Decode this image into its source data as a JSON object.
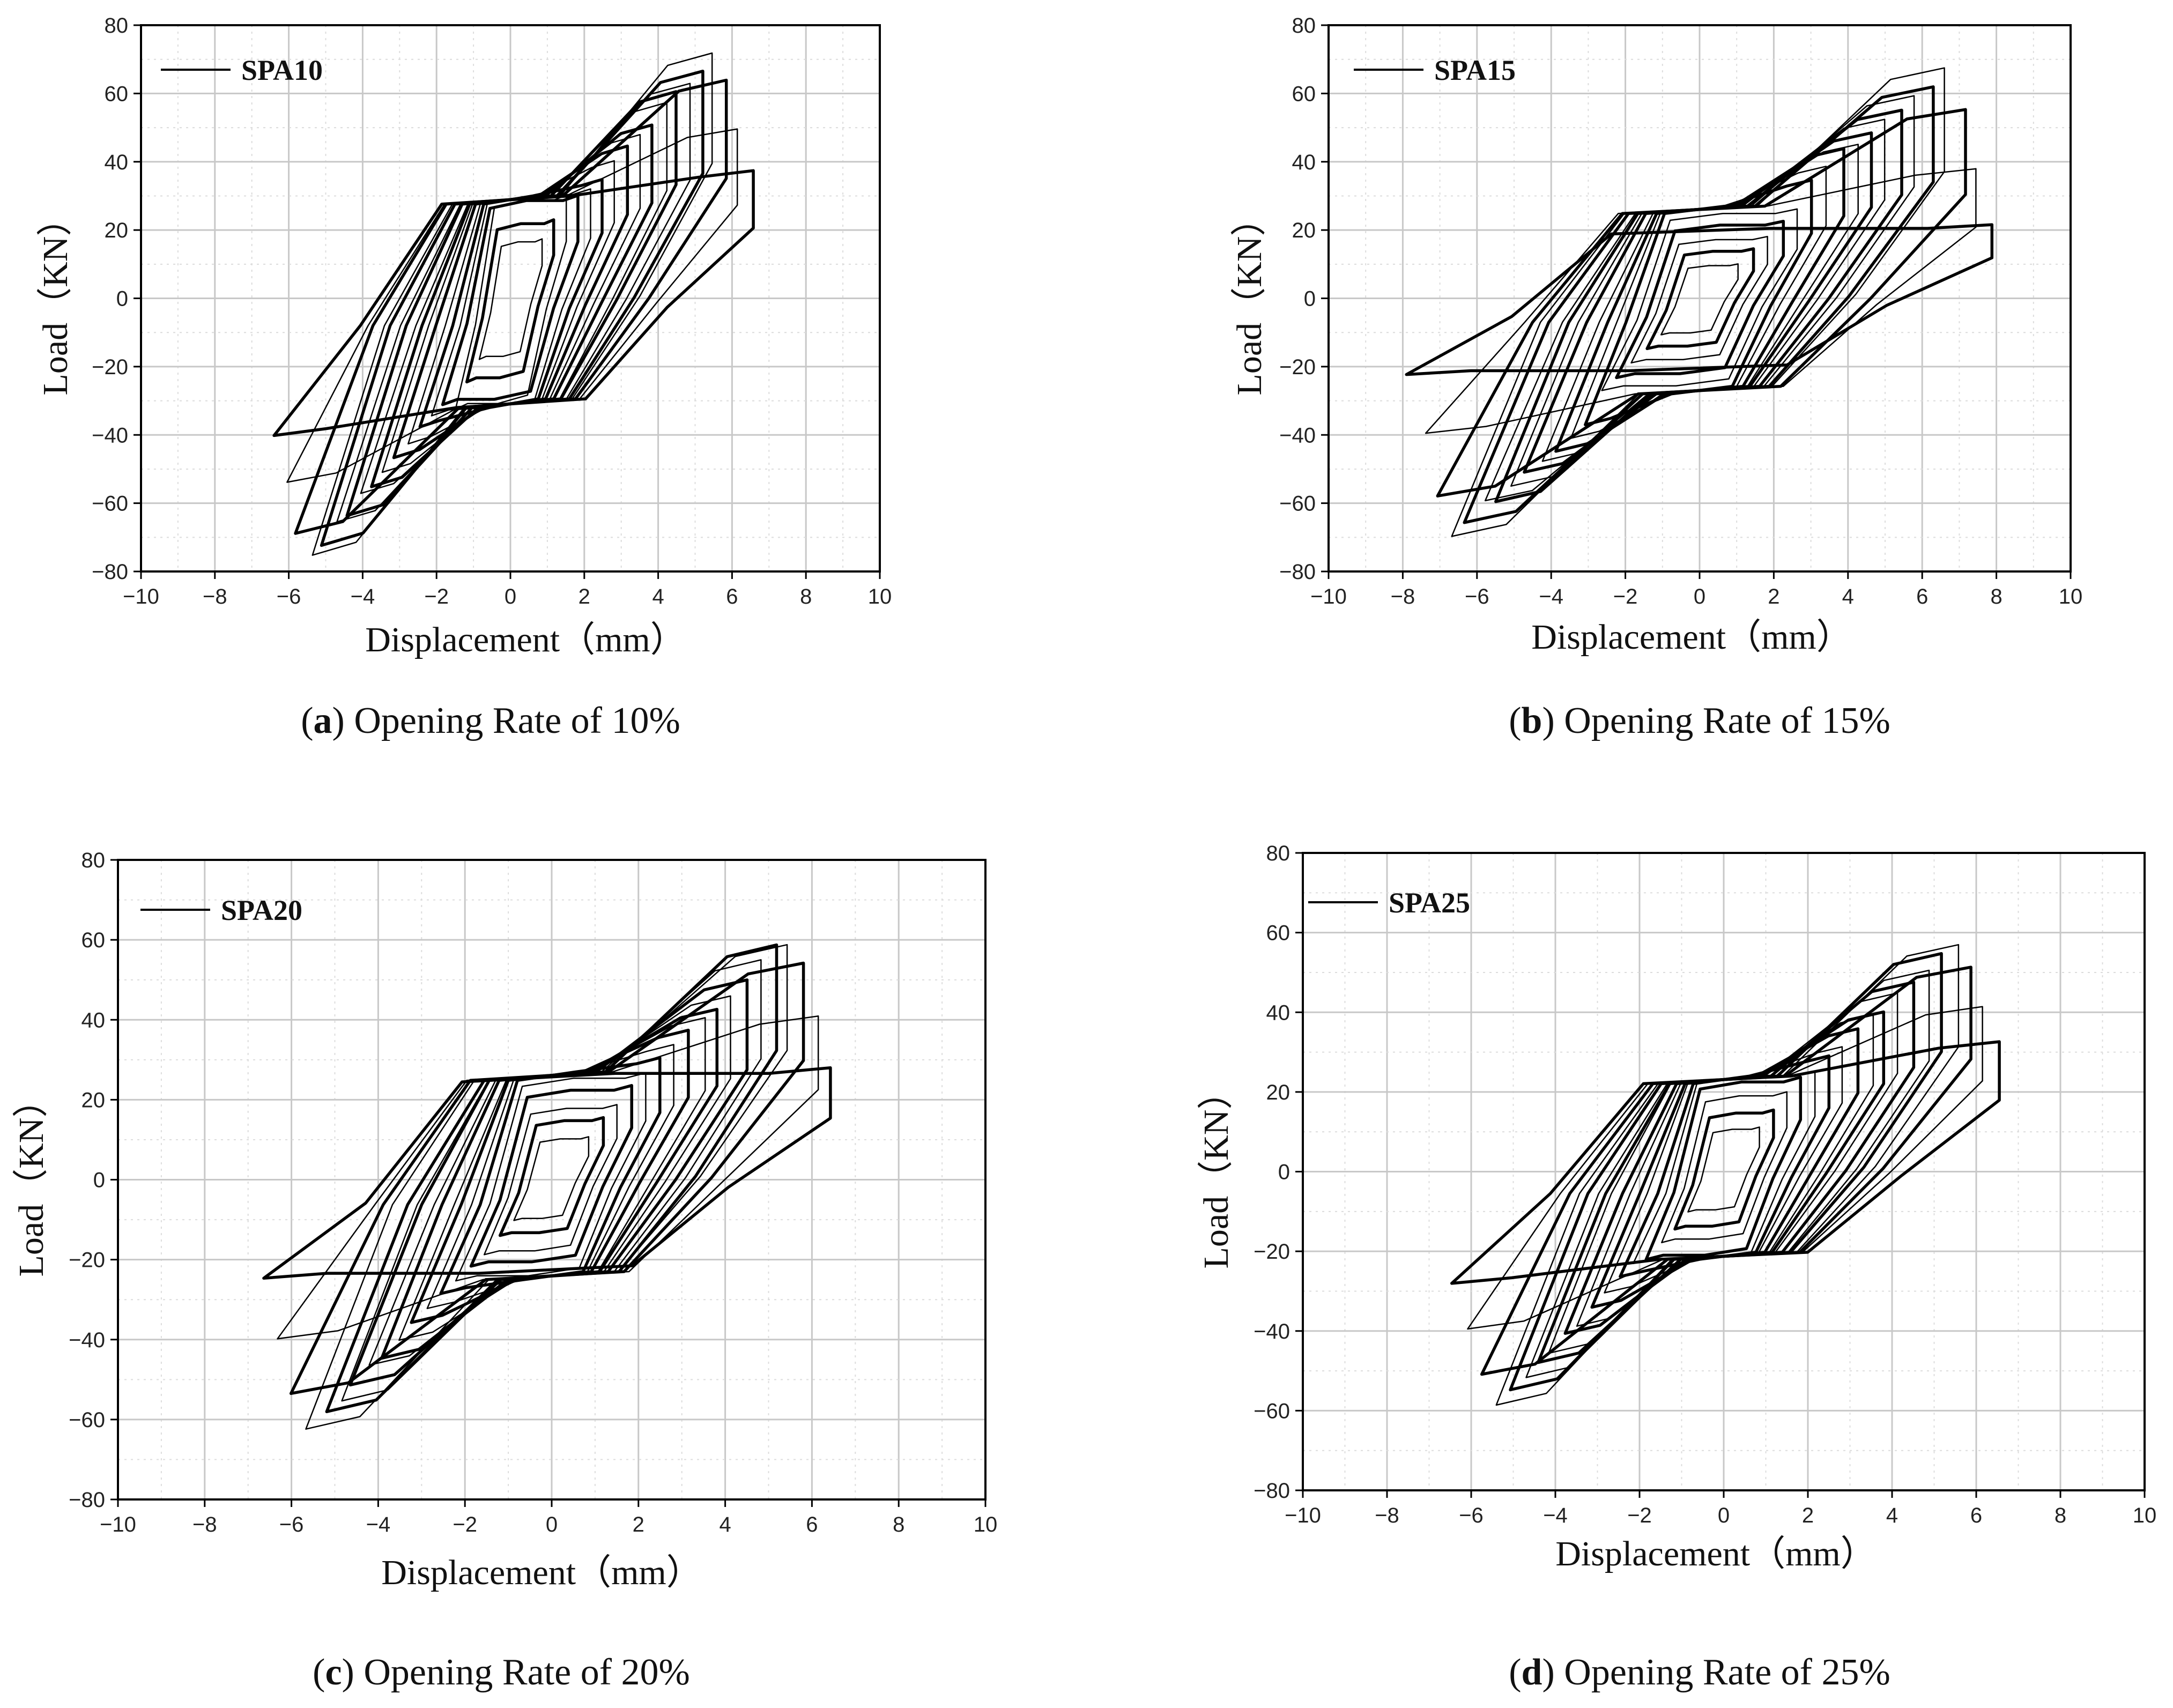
{
  "figure": {
    "captions": [
      {
        "letter": "a",
        "text": "Opening Rate of 10%"
      },
      {
        "letter": "b",
        "text": "Opening Rate of 15%"
      },
      {
        "letter": "c",
        "text": "Opening Rate of 20%"
      },
      {
        "letter": "d",
        "text": "Opening Rate of 25%"
      }
    ]
  },
  "chart_data": [
    {
      "type": "line",
      "title": "",
      "xlabel": "Displacement（mm）",
      "ylabel": "Load（KN）",
      "xlim": [
        -10,
        10
      ],
      "ylim": [
        -80,
        80
      ],
      "xticks": [
        -10,
        -8,
        -6,
        -4,
        -2,
        0,
        2,
        4,
        6,
        8,
        10
      ],
      "yticks": [
        -80,
        -60,
        -40,
        -20,
        0,
        20,
        40,
        60,
        80
      ],
      "grid": true,
      "legend": "top-left",
      "series": [
        {
          "name": "SPA10"
        }
      ],
      "envelope_peaks": {
        "dmax": 6.6,
        "dmin": -6.5,
        "pmax": 73,
        "pmin": -78
      },
      "stage_loads": {
        "stage1_pos": 30,
        "stage1_neg": -32,
        "residual_pos": 37,
        "residual_neg": -40,
        "yield_disp": 2.5,
        "hardening_start": 2.0
      },
      "cycles": 18
    },
    {
      "type": "line",
      "title": "",
      "xlabel": "Displacement（mm）",
      "ylabel": "Load（KN）",
      "xlim": [
        -10,
        10
      ],
      "ylim": [
        -80,
        80
      ],
      "xticks": [
        -10,
        -8,
        -6,
        -4,
        -2,
        0,
        2,
        4,
        6,
        8,
        10
      ],
      "yticks": [
        -80,
        -60,
        -40,
        -20,
        0,
        20,
        40,
        60,
        80
      ],
      "grid": true,
      "legend": "top-left",
      "series": [
        {
          "name": "SPA15"
        }
      ],
      "envelope_peaks": {
        "dmax": 8.0,
        "dmin": -8.0,
        "pmax": 68,
        "pmin": -70
      },
      "stage_loads": {
        "stage1_pos": 27,
        "stage1_neg": -28,
        "residual_pos": 22,
        "residual_neg": -23,
        "yield_disp": 4.5,
        "hardening_start": 2.0
      },
      "cycles": 18
    },
    {
      "type": "line",
      "title": "",
      "xlabel": "Displacement（mm）",
      "ylabel": "Load（KN）",
      "xlim": [
        -10,
        10
      ],
      "ylim": [
        -80,
        80
      ],
      "xticks": [
        -10,
        -8,
        -6,
        -4,
        -2,
        0,
        2,
        4,
        6,
        8,
        10
      ],
      "yticks": [
        -80,
        -60,
        -40,
        -20,
        0,
        20,
        40,
        60,
        80
      ],
      "grid": true,
      "legend": "top-left",
      "series": [
        {
          "name": "SPA20"
        }
      ],
      "envelope_peaks": {
        "dmax": 6.6,
        "dmin": -6.7,
        "pmax": 62,
        "pmin": -64
      },
      "stage_loads": {
        "stage1_pos": 27,
        "stage1_neg": -25,
        "residual_pos": 28,
        "residual_neg": -25,
        "yield_disp": 3.5,
        "hardening_start": 2.2
      },
      "cycles": 18
    },
    {
      "type": "line",
      "title": "",
      "xlabel": "Displacement（mm）",
      "ylabel": "Load（KN）",
      "xlim": [
        -10,
        10
      ],
      "ylim": [
        -80,
        80
      ],
      "xticks": [
        -10,
        -8,
        -6,
        -4,
        -2,
        0,
        2,
        4,
        6,
        8,
        10
      ],
      "yticks": [
        -80,
        -60,
        -40,
        -20,
        0,
        20,
        40,
        60,
        80
      ],
      "grid": true,
      "legend": "top-left",
      "series": [
        {
          "name": "SPA25"
        }
      ],
      "envelope_peaks": {
        "dmax": 6.6,
        "dmin": -6.5,
        "pmax": 58,
        "pmin": -60
      },
      "stage_loads": {
        "stage1_pos": 24,
        "stage1_neg": -22,
        "residual_pos": 32,
        "residual_neg": -28,
        "yield_disp": 3.0,
        "hardening_start": 2.0
      },
      "cycles": 18
    }
  ]
}
